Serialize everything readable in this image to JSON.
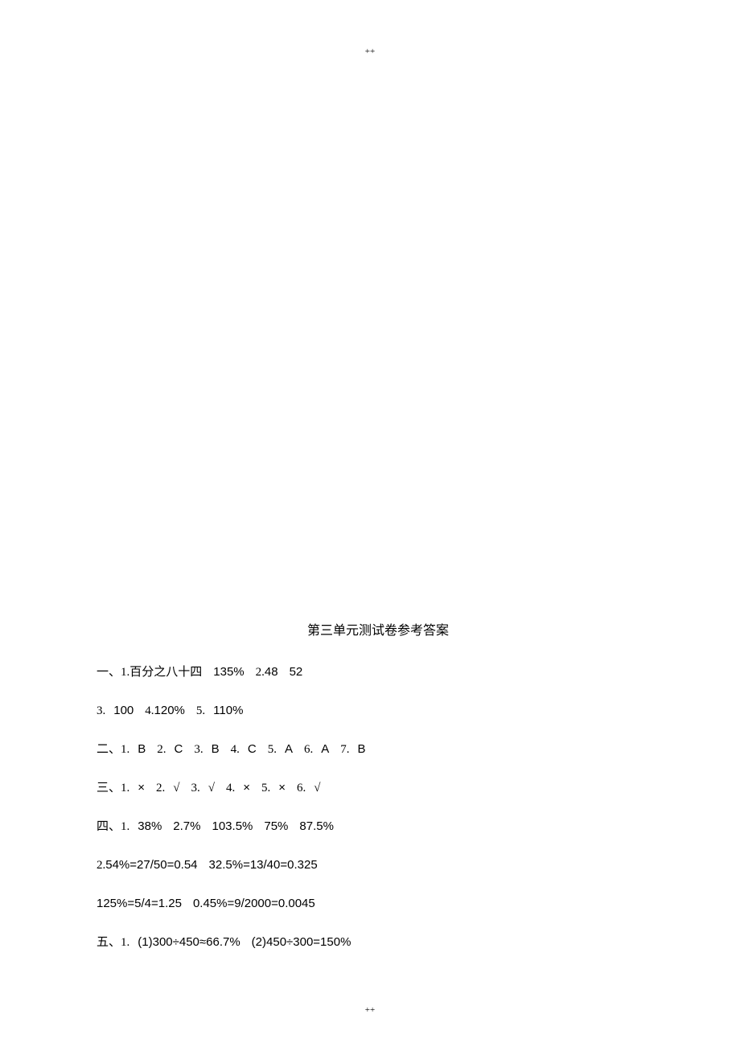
{
  "page_marker": "++",
  "title": "第三单元测试卷参考答案",
  "section1": {
    "label": "一、",
    "item1_num": "1.",
    "item1_text": "百分之八十四",
    "item1_val": "135%",
    "item2_num": "2.",
    "item2_val1": "48",
    "item2_val2": "52"
  },
  "section1_line2": {
    "item3_num": "3.",
    "item3_val": "100",
    "item4_num": "4.",
    "item4_val": "120%",
    "item5_num": "5.",
    "item5_val": "110%"
  },
  "section2": {
    "label": "二、",
    "items": [
      {
        "num": "1.",
        "val": "B"
      },
      {
        "num": "2.",
        "val": "C"
      },
      {
        "num": "3.",
        "val": "B"
      },
      {
        "num": "4.",
        "val": "C"
      },
      {
        "num": "5.",
        "val": "A"
      },
      {
        "num": "6.",
        "val": "A"
      },
      {
        "num": "7.",
        "val": "B"
      }
    ]
  },
  "section3": {
    "label": "三、",
    "items": [
      {
        "num": "1.",
        "val": "×"
      },
      {
        "num": "2.",
        "val": "√"
      },
      {
        "num": "3.",
        "val": "√"
      },
      {
        "num": "4.",
        "val": "×"
      },
      {
        "num": "5.",
        "val": "×"
      },
      {
        "num": "6.",
        "val": "√"
      }
    ]
  },
  "section4": {
    "label": "四、",
    "item1_num": "1.",
    "item1_vals": [
      "38%",
      "2.7%",
      "103.5%",
      "75%",
      "87.5%"
    ]
  },
  "section4_line2": {
    "item2_num": "2.",
    "eq1": "54%=27/50=0.54",
    "eq2": "32.5%=13/40=0.325"
  },
  "section4_line3": {
    "eq1": "125%=5/4=1.25",
    "eq2": "0.45%=9/2000=0.0045"
  },
  "section5": {
    "label": "五、",
    "item1_num": "1.",
    "sub1_num": "(1)",
    "sub1_val": "300÷450≈66.7%",
    "sub2_num": "(2)",
    "sub2_val": "450÷300=150%"
  }
}
